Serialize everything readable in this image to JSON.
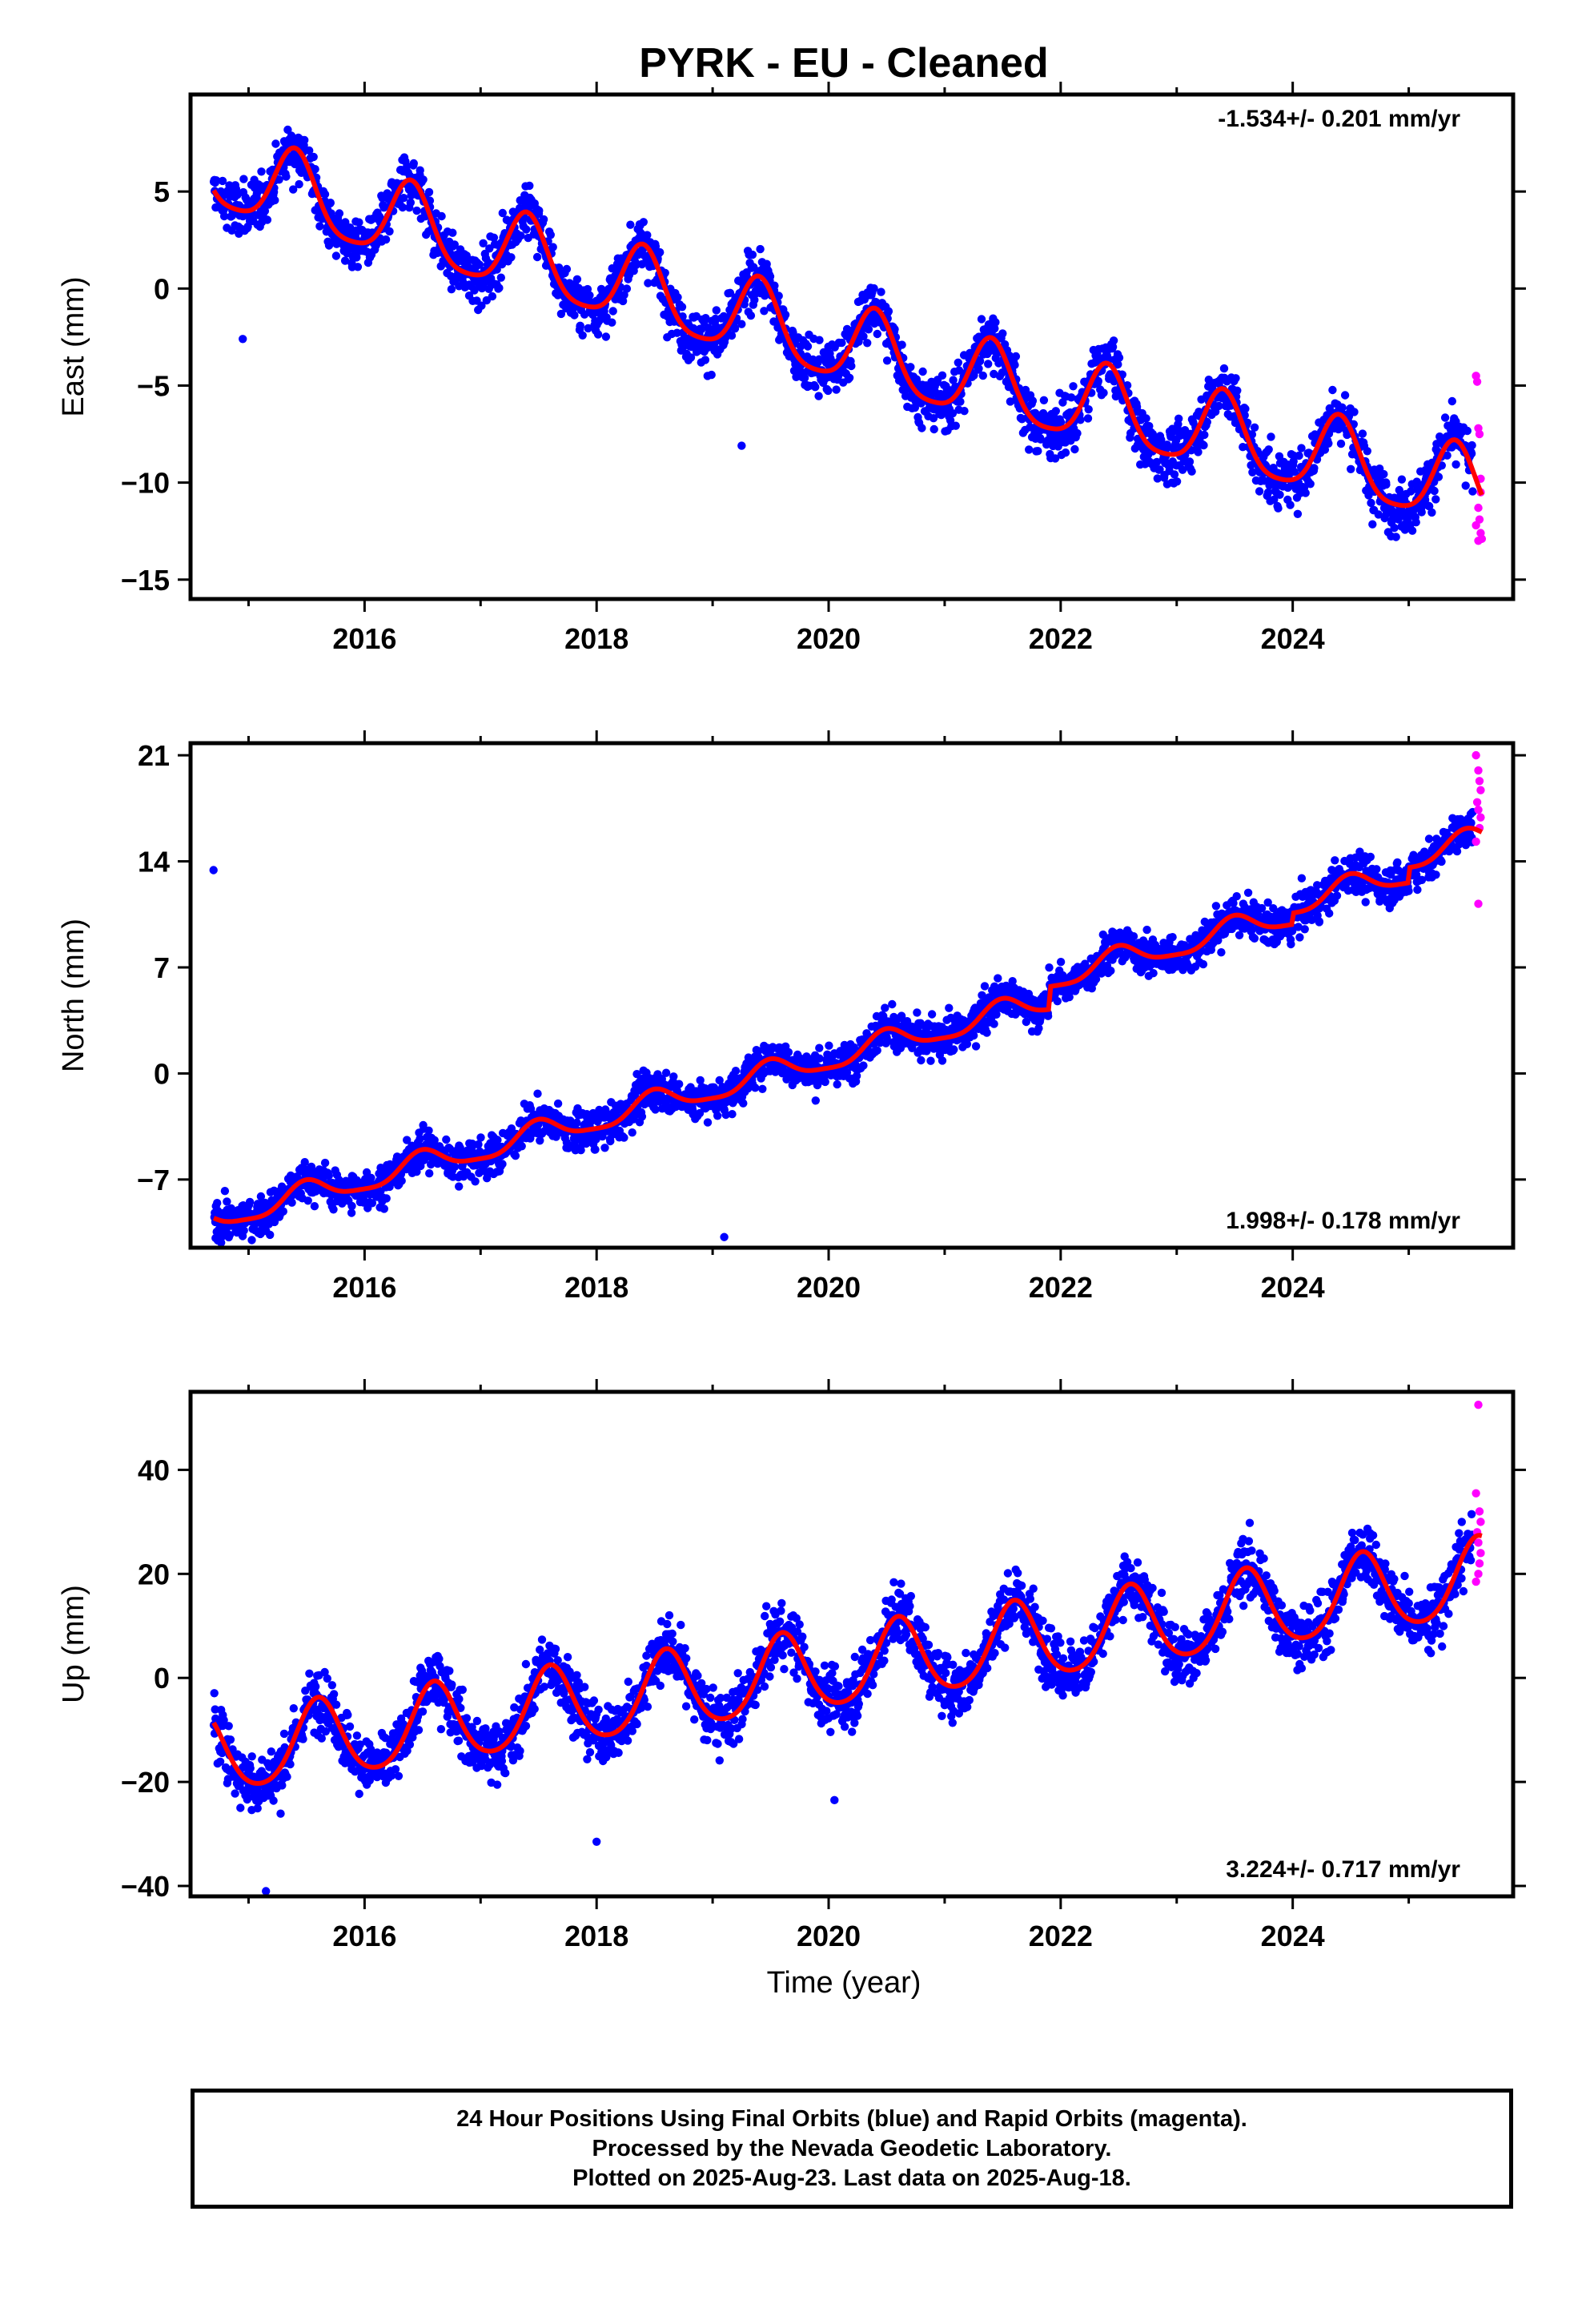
{
  "colors": {
    "final": "#0000ff",
    "rapid": "#ff00ff",
    "fit": "#ff0000",
    "frame": "#000000"
  },
  "chart_data": {
    "type": "scatter",
    "title": "PYRK  - EU - Cleaned",
    "xlabel": "Time (year)",
    "xlim": [
      2014.5,
      2025.9
    ],
    "x_ticks": [
      2016,
      2018,
      2020,
      2022,
      2024
    ],
    "x_tick_labels": [
      "2016",
      "2018",
      "2020",
      "2022",
      "2024"
    ],
    "data_start": 2014.7,
    "final_end": 2025.55,
    "rapid_start": 2025.56,
    "last_data": 2025.63,
    "panels": [
      {
        "key": "east",
        "ylabel": "East (mm)",
        "ylim": [
          -16,
          10
        ],
        "y_ticks": [
          5,
          0,
          -5,
          -10,
          -15
        ],
        "y_tick_labels": [
          "5",
          "0",
          "−5",
          "−10",
          "−15"
        ],
        "rate_text": "-1.534+/- 0.201 mm/yr",
        "rate_position": "top-right",
        "model": {
          "mean": 6.0,
          "trend_breaks": [
            [
              2014.7,
              0
            ],
            [
              2021.0,
              -10.4
            ],
            [
              2025.63,
              -16.5
            ]
          ],
          "annual_amp": 2.0,
          "annual_peak": 2015.4,
          "semi_amp": 0.4,
          "semi_phase": 0.0
        },
        "scatter_sd": 1.1,
        "outliers": [
          [
            2014.95,
            -2.6
          ],
          [
            2019.25,
            -8.1
          ]
        ],
        "rapid_points": [
          [
            2025.58,
            -4.5
          ],
          [
            2025.59,
            -4.8
          ],
          [
            2025.6,
            -7.2
          ],
          [
            2025.61,
            -7.5
          ],
          [
            2025.62,
            -9.8
          ],
          [
            2025.62,
            -10.5
          ],
          [
            2025.6,
            -11.3
          ],
          [
            2025.61,
            -11.9
          ],
          [
            2025.62,
            -12.6
          ],
          [
            2025.6,
            -13.0
          ],
          [
            2025.58,
            -12.2
          ],
          [
            2025.63,
            -12.9
          ]
        ]
      },
      {
        "key": "north",
        "ylabel": "North (mm)",
        "ylim": [
          -11.5,
          21.8
        ],
        "y_ticks": [
          21,
          14,
          7,
          0,
          -7
        ],
        "y_tick_labels": [
          "21",
          "14",
          "7",
          "0",
          "−7"
        ],
        "rate_text": "1.998+/- 0.178 mm/yr",
        "rate_position": "bottom-right",
        "model": {
          "mean": -9.6,
          "trend_breaks": [
            [
              2014.7,
              0
            ],
            [
              2025.63,
              21.8
            ]
          ],
          "annual_amp": 0.8,
          "annual_peak": 2015.5,
          "semi_amp": 0.2,
          "semi_phase": 0.3,
          "steps": [
            [
              2021.9,
              3.0
            ],
            [
              2024.0,
              1.5
            ],
            [
              2025.0,
              2.0
            ]
          ]
        },
        "scatter_sd": 1.0,
        "outliers": [
          [
            2019.1,
            -10.8
          ],
          [
            2014.9,
            -10.5
          ]
        ],
        "rapid_points": [
          [
            2025.58,
            21.0
          ],
          [
            2025.6,
            20.0
          ],
          [
            2025.61,
            19.3
          ],
          [
            2025.62,
            18.7
          ],
          [
            2025.59,
            17.9
          ],
          [
            2025.6,
            17.4
          ],
          [
            2025.62,
            16.9
          ],
          [
            2025.61,
            16.2
          ],
          [
            2025.58,
            15.3
          ],
          [
            2025.6,
            11.2
          ]
        ]
      },
      {
        "key": "up",
        "ylabel": "Up (mm)",
        "ylim": [
          -42,
          55
        ],
        "y_ticks": [
          40,
          20,
          0,
          -20,
          -40
        ],
        "y_tick_labels": [
          "40",
          "20",
          "0",
          "−20",
          "−40"
        ],
        "rate_text": "3.224+/- 0.717 mm/yr",
        "rate_position": "bottom-right",
        "model": {
          "mean": -15.0,
          "trend_breaks": [
            [
              2014.7,
              0
            ],
            [
              2025.63,
              34.0
            ]
          ],
          "annual_amp": 7.5,
          "annual_peak": 2015.6,
          "semi_amp": 1.0,
          "semi_phase": 0.0
        },
        "scatter_sd": 4.5,
        "outliers": [
          [
            2015.15,
            -41.0
          ],
          [
            2020.05,
            -23.5
          ],
          [
            2018.0,
            -31.5
          ]
        ],
        "rapid_points": [
          [
            2025.6,
            52.5
          ],
          [
            2025.58,
            35.5
          ],
          [
            2025.61,
            32.0
          ],
          [
            2025.62,
            30.0
          ],
          [
            2025.59,
            28.0
          ],
          [
            2025.6,
            26.0
          ],
          [
            2025.62,
            24.0
          ],
          [
            2025.61,
            22.0
          ],
          [
            2025.6,
            20.0
          ],
          [
            2025.58,
            18.5
          ]
        ]
      }
    ]
  },
  "footer": {
    "line1": "24 Hour Positions Using Final Orbits (blue) and Rapid Orbits (magenta).",
    "line2": "Processed by the Nevada Geodetic Laboratory.",
    "line3": "Plotted on 2025-Aug-23. Last data on 2025-Aug-18."
  }
}
